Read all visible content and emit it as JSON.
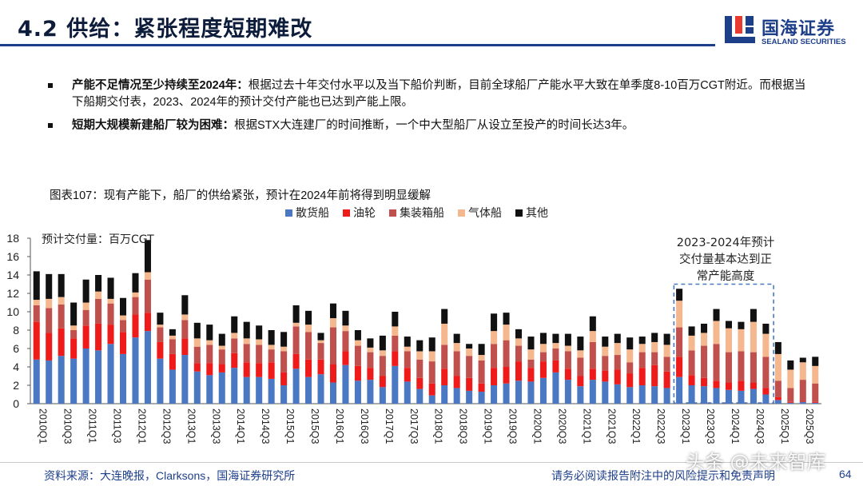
{
  "header": {
    "title": "4.2 供给：紧张程度短期难改"
  },
  "logo": {
    "cn": "国海证券",
    "en": "SEALAND SECURITIES"
  },
  "bullets": [
    {
      "bold": "产能不足情况至少持续至2024年：",
      "text": "根据过去十年交付水平以及当下船价判断，目前全球船厂产能水平大致在单季度8-10百万CGT附近。而根据当下船期交付表，2023、2024年的预计交付产能也已达到产能上限。"
    },
    {
      "bold": "短期大规模新建船厂较为困难：",
      "text": "根据STX大连建厂的时间推断，一个中大型船厂从设立至投产的时间长达3年。"
    }
  ],
  "caption": "图表107：现有产能下，船厂的供给紧张，预计在2024年前将得到明显缓解",
  "chart_data": {
    "type": "bar",
    "stacked": true,
    "unit_label": "预计交付量：百万CGT",
    "annotation": [
      "2023-2024年预计",
      "交付量基本达到正",
      "常产能高度"
    ],
    "ylim": [
      0,
      18
    ],
    "yticks": [
      0,
      2,
      4,
      6,
      8,
      10,
      12,
      14,
      16,
      18
    ],
    "legend_position": "top",
    "grid": false,
    "categories": [
      "2010Q1",
      "2010Q2",
      "2010Q3",
      "2010Q4",
      "2011Q1",
      "2011Q2",
      "2011Q3",
      "2011Q4",
      "2012Q1",
      "2012Q2",
      "2012Q3",
      "2012Q4",
      "2013Q1",
      "2013Q2",
      "2013Q3",
      "2013Q4",
      "2014Q1",
      "2014Q2",
      "2014Q3",
      "2014Q4",
      "2015Q1",
      "2015Q2",
      "2015Q3",
      "2015Q4",
      "2016Q1",
      "2016Q2",
      "2016Q3",
      "2016Q4",
      "2017Q1",
      "2017Q2",
      "2017Q3",
      "2017Q4",
      "2018Q1",
      "2018Q2",
      "2018Q3",
      "2018Q4",
      "2019Q1",
      "2019Q2",
      "2019Q3",
      "2019Q4",
      "2020Q1",
      "2020Q2",
      "2020Q3",
      "2020Q4",
      "2021Q1",
      "2021Q2",
      "2021Q3",
      "2021Q4",
      "2022Q1",
      "2022Q2",
      "2022Q3",
      "2022Q4",
      "2023Q1",
      "2023Q2",
      "2023Q3",
      "2023Q4",
      "2024Q1",
      "2024Q2",
      "2024Q3",
      "2024Q4",
      "2025Q1",
      "2025Q2",
      "2025Q3",
      "2025Q4"
    ],
    "tick_labels": [
      "2010Q1",
      "2010Q3",
      "2011Q1",
      "2011Q3",
      "2012Q1",
      "2012Q3",
      "2013Q1",
      "2013Q3",
      "2014Q1",
      "2014Q3",
      "2015Q1",
      "2015Q3",
      "2016Q1",
      "2016Q3",
      "2017Q1",
      "2017Q3",
      "2018Q1",
      "2018Q3",
      "2019Q1",
      "2019Q3",
      "2020Q1",
      "2020Q3",
      "2021Q1",
      "2021Q3",
      "2022Q1",
      "2022Q3",
      "2023Q1",
      "2023Q3",
      "2024Q1",
      "2024Q3",
      "2025Q1",
      "2025Q3"
    ],
    "highlight_range": [
      "2023Q1",
      "2024Q4"
    ],
    "series": [
      {
        "name": "散货船",
        "color": "#4a78c2",
        "values": [
          4.8,
          4.7,
          5.2,
          4.9,
          6.0,
          5.8,
          6.5,
          5.4,
          7.2,
          7.9,
          4.9,
          3.7,
          5.3,
          3.5,
          3.1,
          3.4,
          3.9,
          2.9,
          2.9,
          2.7,
          2.0,
          3.8,
          2.9,
          3.2,
          2.3,
          4.2,
          2.5,
          2.6,
          1.8,
          4.1,
          2.4,
          1.6,
          0.9,
          2.0,
          1.7,
          1.4,
          1.3,
          2.0,
          2.2,
          2.5,
          2.4,
          2.8,
          3.4,
          2.6,
          1.9,
          2.6,
          2.4,
          2.1,
          1.8,
          2.0,
          1.9,
          1.7,
          2.9,
          2.0,
          1.9,
          1.7,
          1.5,
          1.4,
          1.6,
          1.0,
          0.4,
          0.1,
          0.2,
          0.1
        ]
      },
      {
        "name": "油轮",
        "color": "#ef1b1b",
        "values": [
          4.1,
          3.0,
          3.0,
          2.2,
          2.5,
          2.9,
          2.1,
          2.4,
          2.5,
          2.0,
          1.8,
          1.7,
          1.8,
          0.9,
          1.3,
          0.9,
          1.6,
          1.6,
          1.5,
          1.8,
          1.4,
          1.6,
          1.9,
          1.6,
          2.0,
          1.5,
          1.6,
          1.3,
          1.2,
          1.6,
          1.5,
          1.2,
          1.3,
          1.8,
          1.3,
          1.4,
          0.9,
          1.9,
          1.8,
          2.1,
          1.5,
          1.8,
          1.3,
          1.2,
          1.1,
          1.2,
          1.2,
          1.6,
          1.5,
          1.9,
          2.3,
          1.8,
          2.2,
          1.1,
          0.9,
          0.8,
          0.8,
          1.1,
          0.7,
          0.7,
          0.3,
          0.1,
          0.1,
          0.1
        ]
      },
      {
        "name": "集装箱船",
        "color": "#c0504d",
        "values": [
          1.8,
          2.7,
          2.6,
          0.9,
          1.7,
          2.7,
          2.3,
          1.3,
          1.9,
          3.6,
          1.6,
          1.6,
          2.0,
          1.8,
          2.0,
          1.6,
          1.6,
          2.0,
          2.0,
          1.4,
          2.3,
          3.0,
          3.0,
          1.8,
          4.0,
          2.2,
          2.2,
          1.7,
          2.2,
          1.7,
          1.8,
          2.0,
          2.4,
          2.6,
          2.7,
          2.4,
          2.5,
          2.6,
          2.9,
          1.7,
          0.9,
          1.0,
          1.3,
          1.9,
          2.0,
          2.9,
          1.6,
          1.6,
          1.2,
          1.7,
          1.4,
          1.6,
          3.2,
          2.7,
          3.5,
          4.0,
          3.3,
          3.2,
          3.3,
          3.4,
          1.8,
          1.5,
          2.3,
          2.0
        ]
      },
      {
        "name": "气体船",
        "color": "#f5b78e",
        "values": [
          0.6,
          1.0,
          0.8,
          0.5,
          0.8,
          0.8,
          0.5,
          0.5,
          0.5,
          0.8,
          0.3,
          0.4,
          0.6,
          0.9,
          0.5,
          0.4,
          0.6,
          0.6,
          0.6,
          0.5,
          0.5,
          0.4,
          0.8,
          0.3,
          1.0,
          0.6,
          0.6,
          0.5,
          0.6,
          1.0,
          0.5,
          0.9,
          1.1,
          2.3,
          0.9,
          0.8,
          0.6,
          1.4,
          1.7,
          0.8,
          1.1,
          0.9,
          0.6,
          0.6,
          0.8,
          1.2,
          1.0,
          1.3,
          1.4,
          0.9,
          1.1,
          1.3,
          2.9,
          1.6,
          1.4,
          2.5,
          2.6,
          2.4,
          3.3,
          2.5,
          2.9,
          2.0,
          1.9,
          1.9
        ]
      },
      {
        "name": "其他",
        "color": "#111111",
        "values": [
          3.1,
          2.7,
          2.5,
          2.5,
          2.5,
          1.8,
          2.3,
          1.9,
          2.1,
          3.5,
          1.3,
          0.7,
          2.1,
          1.7,
          1.7,
          1.3,
          1.8,
          1.8,
          1.5,
          1.6,
          1.6,
          1.9,
          1.5,
          0.8,
          1.6,
          1.6,
          1.1,
          1.0,
          1.6,
          1.6,
          1.1,
          1.2,
          1.5,
          1.6,
          1.0,
          0.5,
          1.2,
          1.9,
          1.3,
          1.0,
          1.4,
          1.2,
          1.0,
          1.3,
          1.5,
          1.6,
          1.1,
          1.0,
          1.3,
          0.8,
          1.0,
          1.2,
          1.3,
          1.0,
          1.0,
          1.3,
          0.8,
          0.8,
          1.4,
          1.1,
          1.3,
          1.0,
          0.5,
          1.0
        ]
      }
    ]
  },
  "footer": {
    "source": "资料来源：大连晚报，Clarksons，国海证券研究所",
    "disclaimer": "请务必阅读报告附注中的风险提示和免责声明",
    "page": "64"
  },
  "watermark": "头条 @未来智库"
}
